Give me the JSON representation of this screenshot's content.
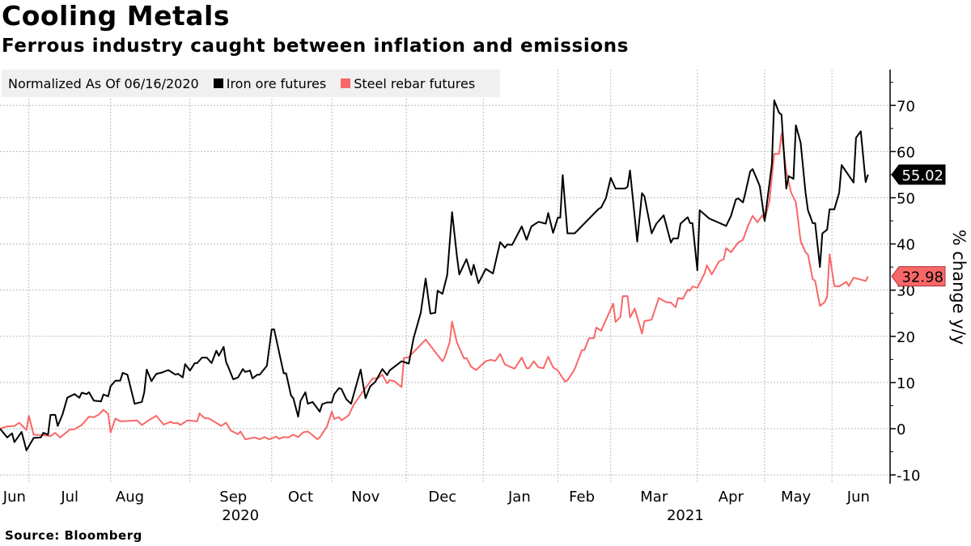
{
  "header": {
    "title": "Cooling Metals",
    "subtitle": "Ferrous industry caught between inflation and emissions"
  },
  "legend": {
    "note": "Normalized As Of 06/16/2020",
    "items": [
      {
        "label": "Iron ore futures",
        "color": "#000000"
      },
      {
        "label": "Steel rebar futures",
        "color": "#f86868"
      }
    ]
  },
  "footer": {
    "source": "Source: Bloomberg"
  },
  "chart_data": {
    "type": "line",
    "title": "Cooling Metals",
    "subtitle": "Ferrous industry caught between inflation and emissions",
    "xlabel": "",
    "ylabel": "% change y/y",
    "x_unit": "days since 06/16/2020",
    "xlim": [
      0,
      369.5
    ],
    "ylim": [
      -12,
      78
    ],
    "yticks": [
      -10,
      0,
      10,
      20,
      30,
      40,
      50,
      60,
      70
    ],
    "grid": true,
    "legend_position": "top-left",
    "month_labels": [
      {
        "label": "Jun",
        "x": 6
      },
      {
        "label": "Jul",
        "x": 29
      },
      {
        "label": "Aug",
        "x": 54
      },
      {
        "label": "Sep",
        "x": 97
      },
      {
        "label": "Oct",
        "x": 125
      },
      {
        "label": "Nov",
        "x": 152
      },
      {
        "label": "Dec",
        "x": 184
      },
      {
        "label": "Jan",
        "x": 216
      },
      {
        "label": "Feb",
        "x": 242
      },
      {
        "label": "Mar",
        "x": 272
      },
      {
        "label": "Apr",
        "x": 304
      },
      {
        "label": "May",
        "x": 331
      },
      {
        "label": "Jun",
        "x": 357
      }
    ],
    "year_labels": [
      {
        "label": "2020",
        "x": 100
      },
      {
        "label": "2021",
        "x": 285
      }
    ],
    "x_gridlines": [
      12,
      46,
      79,
      113,
      138,
      169,
      201,
      232,
      254,
      290,
      318,
      346
    ],
    "series": [
      {
        "name": "Iron ore futures",
        "color": "#000000",
        "last_value_label": "55.02",
        "x": [
          0,
          3,
          5,
          6,
          9,
          11,
          14,
          17,
          18,
          20,
          21,
          23,
          24,
          26,
          28,
          31,
          33,
          34,
          36,
          37,
          39,
          42,
          43,
          45,
          46,
          48,
          50,
          51,
          53,
          56,
          59,
          60,
          61,
          63,
          65,
          67,
          70,
          73,
          74,
          76,
          77,
          79,
          81,
          82,
          84,
          86,
          88,
          90,
          91,
          93,
          94,
          95,
          97,
          99,
          101,
          102,
          104,
          105,
          107,
          108,
          111,
          113,
          114,
          118,
          119,
          121,
          122,
          124,
          125,
          127,
          128,
          130,
          133,
          134,
          136,
          138,
          139,
          141,
          142,
          144,
          146,
          150,
          152,
          154,
          156,
          159,
          161,
          162,
          167,
          170,
          172,
          175,
          177,
          179,
          181,
          182,
          184,
          186,
          188,
          190,
          191,
          193,
          194,
          196,
          197,
          199,
          202,
          205,
          208,
          210,
          211,
          213,
          217,
          219,
          221,
          224,
          227,
          228,
          230,
          232,
          233,
          234,
          236,
          239,
          249,
          250,
          252,
          254,
          256,
          260,
          261,
          262,
          265,
          267,
          268,
          271,
          273,
          276,
          279,
          280,
          282,
          283,
          286,
          287,
          288,
          290,
          291,
          295,
          302,
          304,
          306,
          307,
          309,
          310,
          312,
          313,
          315,
          316,
          318,
          321,
          322,
          324,
          325,
          327,
          328,
          330,
          331,
          333,
          335,
          336,
          338,
          339,
          341,
          342,
          344,
          345,
          347,
          349,
          350,
          355,
          356,
          358,
          360,
          361
        ],
        "y": [
          0,
          -1.9,
          -1,
          -2.9,
          -0.7,
          -4.7,
          -2,
          -1.9,
          -0.9,
          -1.3,
          3,
          3,
          0.6,
          3.1,
          6.7,
          7.5,
          6.7,
          7.8,
          7.5,
          7.9,
          6.1,
          5.9,
          7.4,
          7,
          9.2,
          10.4,
          10.4,
          12.1,
          11.7,
          5.4,
          5.8,
          7.9,
          12.8,
          10.3,
          11.9,
          12.1,
          12.7,
          11.7,
          11.9,
          11.1,
          14,
          12.6,
          14.2,
          14.2,
          15.4,
          15.4,
          14.2,
          16.9,
          15.8,
          17.7,
          14.5,
          13.3,
          10.7,
          11.1,
          12.9,
          12.3,
          12.6,
          10.9,
          11.7,
          11.7,
          13.6,
          21.5,
          21.5,
          12,
          12,
          7.2,
          6.6,
          2.6,
          6,
          7.9,
          5.4,
          5.8,
          3.7,
          5.3,
          5.7,
          5.7,
          7.5,
          8.8,
          8.6,
          6.4,
          5.4,
          12.8,
          6.6,
          9.2,
          10.1,
          12.9,
          11.6,
          12.6,
          14.6,
          14.1,
          19.6,
          25.1,
          32.5,
          24.9,
          25.1,
          29.9,
          29.2,
          33.3,
          46.9,
          37.5,
          33.4,
          35.6,
          36.7,
          33.3,
          35.5,
          31.5,
          34.6,
          33.6,
          40.4,
          39.2,
          39.9,
          39.8,
          43.8,
          40.9,
          43.8,
          44.8,
          44.4,
          46.7,
          42.4,
          45.7,
          45.7,
          54.9,
          42.3,
          42.3,
          47.6,
          47.9,
          49.9,
          54.3,
          52,
          52,
          52.4,
          55.9,
          40.5,
          51,
          50.3,
          42.3,
          44.4,
          46.2,
          40.3,
          41.2,
          41.2,
          44.4,
          45.8,
          44.5,
          44.5,
          34.3,
          47.3,
          45.5,
          43.9,
          46.1,
          49.6,
          49.9,
          49,
          51.1,
          55.7,
          56.2,
          53.8,
          52.5,
          45,
          57.2,
          71.1,
          68.4,
          68,
          52,
          54.7,
          54.1,
          65.7,
          61.9,
          51.1,
          47.3,
          44.5,
          44.5,
          35,
          42.3,
          43.1,
          47.5,
          47.5,
          51.1,
          57.1,
          53.3,
          63,
          64.4,
          53.4,
          55.02
        ]
      },
      {
        "name": "Steel rebar futures",
        "color": "#f86868",
        "last_value_label": "32.98",
        "x": [
          0,
          3,
          6,
          8,
          11,
          12,
          14,
          18,
          21,
          23,
          25,
          29,
          31,
          34,
          37,
          39,
          41,
          43,
          45,
          46,
          48,
          50,
          57,
          59,
          62,
          65,
          68,
          71,
          72,
          74,
          75,
          78,
          82,
          83,
          85,
          87,
          92,
          94,
          96,
          99,
          100,
          102,
          106,
          108,
          110,
          112,
          115,
          116,
          118,
          120,
          122,
          124,
          126,
          128,
          130,
          132,
          133,
          136,
          138,
          139,
          141,
          142,
          145,
          147,
          151,
          155,
          157,
          159,
          161,
          162,
          164,
          167,
          168,
          170,
          177,
          184,
          185,
          187,
          188,
          190,
          193,
          194,
          196,
          198,
          202,
          204,
          206,
          208,
          210,
          214,
          217,
          219,
          220,
          222,
          224,
          226,
          228,
          230,
          232,
          235,
          236,
          238,
          239,
          242,
          243,
          245,
          247,
          248,
          250,
          255,
          256,
          258,
          259,
          261,
          262,
          264,
          267,
          268,
          271,
          274,
          277,
          279,
          281,
          282,
          284,
          286,
          287,
          288,
          290,
          293,
          294,
          296,
          299,
          301,
          302,
          304,
          307,
          309,
          311,
          313,
          315,
          317,
          318,
          320,
          322,
          324,
          325,
          327,
          329,
          331,
          333,
          335,
          336,
          338,
          339,
          341,
          343,
          344,
          345,
          347,
          349,
          352,
          353,
          355,
          360,
          361
        ],
        "y": [
          0,
          0.5,
          0.6,
          1.3,
          -0.3,
          2.8,
          -1.3,
          -1.4,
          -1.6,
          -0.9,
          -1.9,
          -0.2,
          -0.1,
          0.8,
          2.6,
          2.5,
          3,
          4.1,
          3.2,
          -0.8,
          2.2,
          1.6,
          1.8,
          0.8,
          1.9,
          2.8,
          0.9,
          1.5,
          1.2,
          1.2,
          0.8,
          1.8,
          1.6,
          3.3,
          2.3,
          2.2,
          0.6,
          1.3,
          -0.4,
          -1.2,
          -0.6,
          -2.3,
          -1.9,
          -2.3,
          -1.8,
          -2.3,
          -1.7,
          -2.2,
          -1.8,
          -1.9,
          -1.3,
          -1.8,
          -0.8,
          -0.6,
          -1.4,
          -2.3,
          -1.9,
          0.5,
          3.7,
          2.1,
          2.5,
          1.8,
          2.9,
          5.1,
          8.1,
          10.9,
          10.9,
          11.7,
          9.8,
          10.5,
          10.3,
          9,
          15.3,
          15.5,
          19.3,
          14.6,
          15.5,
          18.7,
          23.2,
          18.7,
          15.2,
          15.3,
          13.4,
          12.7,
          14.6,
          14.9,
          14.7,
          16.2,
          13.9,
          13,
          15.4,
          13.1,
          13.1,
          14.6,
          13.3,
          13.1,
          15.6,
          13.3,
          12.6,
          10.2,
          10.5,
          12,
          12.9,
          17,
          17,
          19.6,
          19.6,
          21.9,
          21.2,
          27.1,
          23.1,
          24.2,
          28.7,
          28.7,
          24.1,
          26,
          20.6,
          23.3,
          23.6,
          28.3,
          27.4,
          27.3,
          26.3,
          28.3,
          28.1,
          30.1,
          29.9,
          30.8,
          30.5,
          33.6,
          35.4,
          33.4,
          36.2,
          36.7,
          39.1,
          38.2,
          40.3,
          40.9,
          43.8,
          46.1,
          44.7,
          46.2,
          45.2,
          49.3,
          59.5,
          59.5,
          63.9,
          55.7,
          51.1,
          49,
          40.6,
          38.2,
          37.7,
          32.4,
          32,
          26.6,
          27.4,
          28.6,
          37.8,
          30.9,
          30.8,
          31.8,
          30.9,
          32.7,
          32,
          32.98
        ]
      }
    ]
  }
}
